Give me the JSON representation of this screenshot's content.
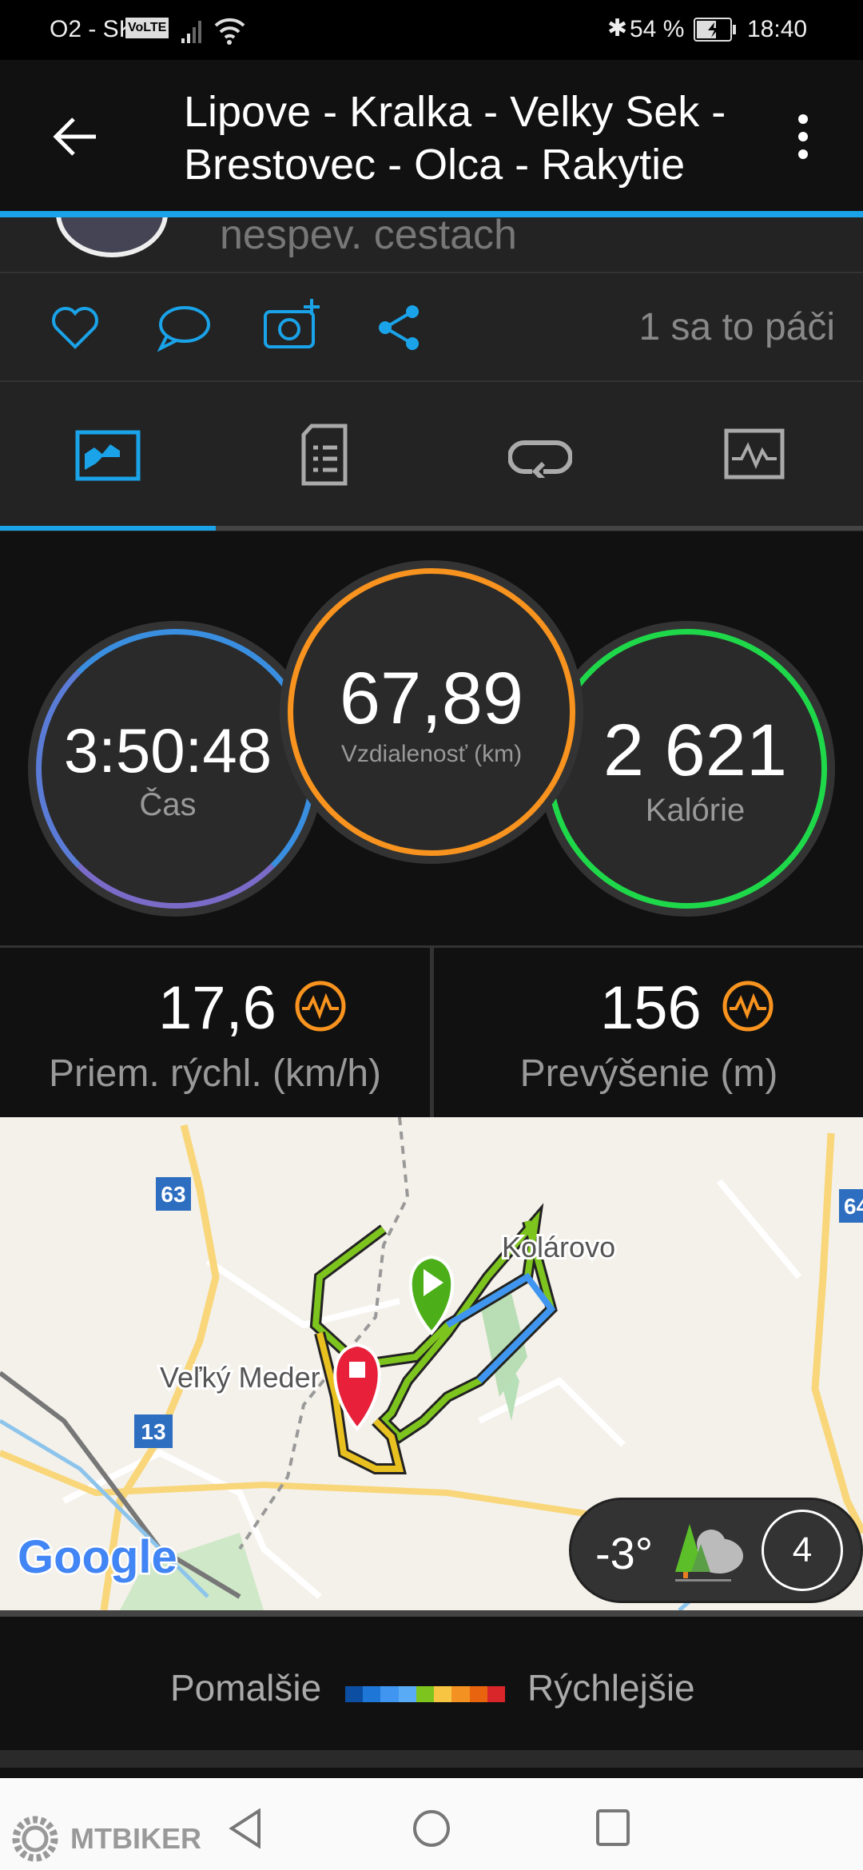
{
  "status_bar": {
    "carrier": "O2 - SK",
    "volte": "VoLTE",
    "battery": "54 %",
    "time": "18:40"
  },
  "header": {
    "title": "Lipove - Kralka - Velky Sek - Brestovec - Olca - Rakytie",
    "back_icon": "arrow-left-icon",
    "menu_icon": "more-vert-icon"
  },
  "subtitle": "nespev. cestach",
  "actions": {
    "likes": "1 sa to páči",
    "icons": [
      "heart-icon",
      "comment-icon",
      "add-photo-icon",
      "share-icon"
    ]
  },
  "tabs": [
    {
      "icon": "overview-icon",
      "active": true
    },
    {
      "icon": "details-icon"
    },
    {
      "icon": "laps-icon"
    },
    {
      "icon": "charts-icon"
    }
  ],
  "stats": {
    "time": {
      "value": "3:50:48",
      "label": "Čas"
    },
    "distance": {
      "value": "67,89",
      "label": "Vzdialenosť (km)"
    },
    "calories": {
      "value": "2 621",
      "label": "Kalórie"
    },
    "avg_speed": {
      "value": "17,6",
      "label": "Priem. rýchl. (km/h)"
    },
    "elevation": {
      "value": "156",
      "label": "Prevýšenie (m)"
    }
  },
  "map": {
    "places": [
      "Kolárovo",
      "Veľký Meder"
    ],
    "road_numbers": [
      "63",
      "13",
      "64"
    ],
    "brand": "Google",
    "weather": {
      "temp": "-3°",
      "wind": "4"
    }
  },
  "legend": {
    "slow": "Pomalšie",
    "fast": "Rýchlejšie",
    "colors": [
      "#0b4ea2",
      "#1e77d6",
      "#3f95ef",
      "#5aabf5",
      "#7ec41f",
      "#f8c542",
      "#f39122",
      "#e8640f",
      "#d9262a"
    ]
  },
  "watermark": "MTBIKER",
  "colors": {
    "accent": "#1aa3e8",
    "time_ring": "#3a8ee0",
    "distance_ring": "#f7931e",
    "calories_ring": "#1fd84a"
  }
}
